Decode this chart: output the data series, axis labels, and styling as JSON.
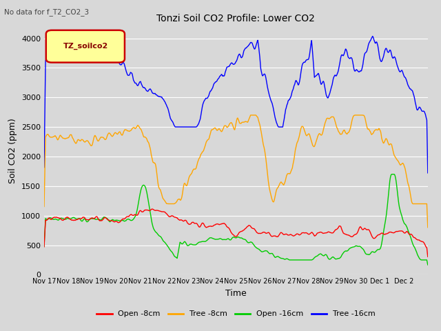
{
  "title": "Tonzi Soil CO2 Profile: Lower CO2",
  "subtitle": "No data for f_T2_CO2_3",
  "xlabel": "Time",
  "ylabel": "Soil CO2 (ppm)",
  "ylim": [
    0,
    4200
  ],
  "fig_width": 6.4,
  "fig_height": 4.8,
  "fig_dpi": 100,
  "background_color": "#d8d8d8",
  "legend_label": "TZ_soilco2",
  "legend_entries": [
    "Open -8cm",
    "Tree -8cm",
    "Open -16cm",
    "Tree -16cm"
  ],
  "legend_colors": [
    "#ff0000",
    "#ffa500",
    "#00cc00",
    "#0000ff"
  ],
  "yticks": [
    0,
    500,
    1000,
    1500,
    2000,
    2500,
    3000,
    3500,
    4000
  ],
  "xtick_labels": [
    "Nov 17",
    "Nov 18",
    "Nov 19",
    "Nov 20",
    "Nov 21",
    "Nov 22",
    "Nov 23",
    "Nov 24",
    "Nov 25",
    "Nov 26",
    "Nov 27",
    "Nov 28",
    "Nov 29",
    "Nov 30",
    "Dec 1",
    "Dec 2"
  ],
  "grid_color": "#ffffff"
}
